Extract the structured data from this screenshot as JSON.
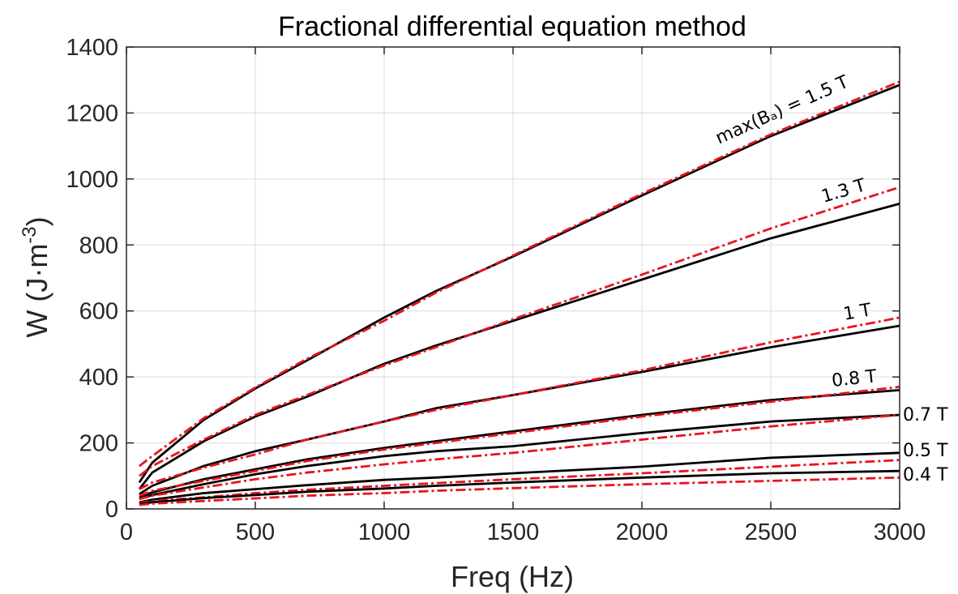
{
  "chart_data": {
    "type": "line",
    "title": "Fractional differential equation method",
    "xlabel": "Freq (Hz)",
    "ylabel_main": "W (J·m",
    "ylabel_sup": "-3",
    "ylabel_tail": ")",
    "xlim": [
      0,
      3000
    ],
    "ylim": [
      0,
      1400
    ],
    "xticks": [
      0,
      500,
      1000,
      1500,
      2000,
      2500,
      3000
    ],
    "yticks": [
      0,
      200,
      400,
      600,
      800,
      1000,
      1200,
      1400
    ],
    "grid": true,
    "colors": {
      "measured": "#000000",
      "model": "#e8141b",
      "grid": "#dcdcdc",
      "axis": "#262626"
    },
    "series": [
      {
        "label": "max(Bₐ) = 1.5 T",
        "measured": {
          "x": [
            50,
            100,
            300,
            500,
            700,
            1000,
            1200,
            1500,
            2000,
            2500,
            3000
          ],
          "y": [
            80,
            140,
            270,
            365,
            450,
            580,
            660,
            765,
            950,
            1130,
            1285
          ]
        },
        "model": {
          "x": [
            50,
            100,
            300,
            500,
            700,
            1000,
            1200,
            1500,
            2000,
            2500,
            3000
          ],
          "y": [
            130,
            160,
            275,
            368,
            455,
            570,
            655,
            768,
            955,
            1135,
            1295
          ]
        }
      },
      {
        "label": "1.3 T",
        "measured": {
          "x": [
            50,
            100,
            300,
            500,
            700,
            1000,
            1200,
            1500,
            2000,
            2500,
            3000
          ],
          "y": [
            60,
            110,
            205,
            280,
            340,
            440,
            495,
            570,
            695,
            820,
            925
          ]
        },
        "model": {
          "x": [
            50,
            100,
            300,
            500,
            700,
            1000,
            1200,
            1500,
            2000,
            2500,
            3000
          ],
          "y": [
            100,
            130,
            210,
            285,
            345,
            435,
            490,
            575,
            710,
            850,
            975
          ]
        }
      },
      {
        "label": "1 T",
        "measured": {
          "x": [
            50,
            100,
            300,
            500,
            700,
            1000,
            1200,
            1500,
            2000,
            2500,
            3000
          ],
          "y": [
            45,
            70,
            130,
            175,
            210,
            265,
            305,
            345,
            415,
            490,
            555
          ]
        },
        "model": {
          "x": [
            50,
            100,
            300,
            500,
            700,
            1000,
            1200,
            1500,
            2000,
            2500,
            3000
          ],
          "y": [
            60,
            80,
            125,
            165,
            210,
            265,
            300,
            345,
            420,
            505,
            580
          ]
        }
      },
      {
        "label": "0.8 T",
        "measured": {
          "x": [
            50,
            100,
            300,
            500,
            700,
            1000,
            1200,
            1500,
            2000,
            2500,
            3000
          ],
          "y": [
            35,
            50,
            90,
            120,
            150,
            185,
            205,
            235,
            285,
            330,
            360
          ]
        },
        "model": {
          "x": [
            50,
            100,
            300,
            500,
            700,
            1000,
            1200,
            1500,
            2000,
            2500,
            3000
          ],
          "y": [
            40,
            55,
            85,
            115,
            145,
            180,
            200,
            230,
            280,
            325,
            370
          ]
        }
      },
      {
        "label": "0.7 T",
        "measured": {
          "x": [
            50,
            100,
            300,
            500,
            700,
            1000,
            1200,
            1500,
            2000,
            2500,
            3000
          ],
          "y": [
            30,
            42,
            75,
            105,
            130,
            160,
            175,
            190,
            230,
            265,
            285
          ]
        },
        "model": {
          "x": [
            50,
            100,
            300,
            500,
            700,
            1000,
            1200,
            1500,
            2000,
            2500,
            3000
          ],
          "y": [
            30,
            40,
            65,
            90,
            110,
            135,
            150,
            170,
            210,
            250,
            285
          ]
        }
      },
      {
        "label": "0.5 T",
        "measured": {
          "x": [
            50,
            100,
            300,
            500,
            700,
            1000,
            1200,
            1500,
            2000,
            2500,
            3000
          ],
          "y": [
            20,
            28,
            48,
            60,
            72,
            88,
            95,
            108,
            128,
            155,
            170
          ]
        },
        "model": {
          "x": [
            50,
            100,
            300,
            500,
            700,
            1000,
            1200,
            1500,
            2000,
            2500,
            3000
          ],
          "y": [
            18,
            24,
            35,
            48,
            58,
            70,
            78,
            90,
            108,
            128,
            148
          ]
        }
      },
      {
        "label": "0.4 T",
        "measured": {
          "x": [
            50,
            100,
            300,
            500,
            700,
            1000,
            1200,
            1500,
            2000,
            2500,
            3000
          ],
          "y": [
            15,
            20,
            33,
            42,
            52,
            62,
            70,
            80,
            95,
            108,
            115
          ]
        },
        "model": {
          "x": [
            50,
            100,
            300,
            500,
            700,
            1000,
            1200,
            1500,
            2000,
            2500,
            3000
          ],
          "y": [
            12,
            16,
            24,
            32,
            40,
            48,
            55,
            63,
            75,
            85,
            95
          ]
        }
      }
    ]
  }
}
